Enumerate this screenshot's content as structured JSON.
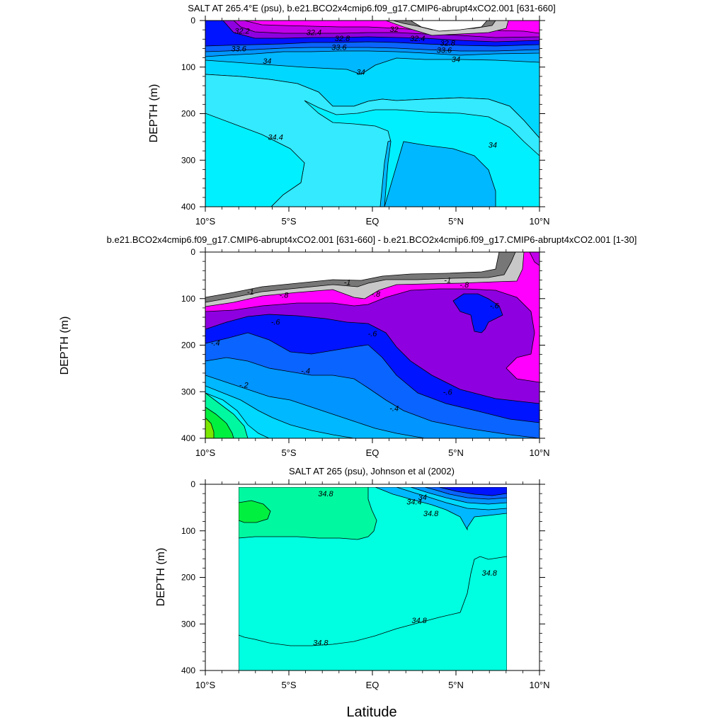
{
  "figure": {
    "xlabel": "Latitude",
    "colors": {
      "frame": "#000000",
      "contour_line": "#000000",
      "c_gray_dark": "#777777",
      "c_gray_light": "#c8c8c8",
      "c_magenta": "#ff00ff",
      "c_violet": "#c000e8",
      "c_purple": "#8e00e0",
      "c_blue": "#0014ff",
      "c_blue_mid": "#0a64ff",
      "c_azure": "#0095ff",
      "c_sky": "#00b8ff",
      "c_cyan_mid": "#00d8ff",
      "c_cyan_light": "#33eaff",
      "c_cyan": "#00f0ff",
      "c_aqua": "#00ffe0",
      "c_sea": "#00f8a0",
      "c_green": "#00f040",
      "c_lime": "#7ce800"
    }
  },
  "chart_data": [
    {
      "type": "contour",
      "title": "SALT AT 265.4°E (psu), b.e21.BCO2x4cmip6.f09_g17.CMIP6-abrupt4xCO2.001 [631-660]",
      "xlabel": "",
      "ylabel": "DEPTH (m)",
      "x_tick_labels": [
        "10°S",
        "5°S",
        "EQ",
        "5°N",
        "10°N"
      ],
      "x_ticks": [
        -10,
        -5,
        0,
        5,
        10
      ],
      "xlim": [
        -10,
        10
      ],
      "y_tick_labels": [
        "0",
        "100",
        "200",
        "300",
        "400"
      ],
      "y_ticks": [
        0,
        100,
        200,
        300,
        400
      ],
      "ylim": [
        400,
        0
      ],
      "y_inverted": true,
      "contour_labels": [
        {
          "text": "32.2",
          "lat": -7.8,
          "depth": 22
        },
        {
          "text": "32.4",
          "lat": -3.5,
          "depth": 25
        },
        {
          "text": "32",
          "lat": 1.3,
          "depth": 18
        },
        {
          "text": "32.4",
          "lat": 2.7,
          "depth": 38
        },
        {
          "text": "32.8",
          "lat": -1.8,
          "depth": 38
        },
        {
          "text": "32.8",
          "lat": 4.5,
          "depth": 48
        },
        {
          "text": "33.6",
          "lat": -2.0,
          "depth": 57
        },
        {
          "text": "33.6",
          "lat": 4.3,
          "depth": 63
        },
        {
          "text": "33.6",
          "lat": -8.0,
          "depth": 60
        },
        {
          "text": "34",
          "lat": -6.3,
          "depth": 87
        },
        {
          "text": "34",
          "lat": -0.7,
          "depth": 110
        },
        {
          "text": "34",
          "lat": 5.0,
          "depth": 83
        },
        {
          "text": "34.4",
          "lat": -5.8,
          "depth": 250
        },
        {
          "text": "34",
          "lat": 7.2,
          "depth": 267
        }
      ]
    },
    {
      "type": "contour",
      "title": "b.e21.BCO2x4cmip6.f09_g17.CMIP6-abrupt4xCO2.001 [631-660] - b.e21.BCO2x4cmip6.f09_g17.CMIP6-abrupt4xCO2.001 [1-30]",
      "xlabel": "",
      "ylabel": "DEPTH (m)",
      "x_tick_labels": [
        "10°S",
        "5°S",
        "EQ",
        "5°N",
        "10°N"
      ],
      "x_ticks": [
        -10,
        -5,
        0,
        5,
        10
      ],
      "xlim": [
        -10,
        10
      ],
      "y_tick_labels": [
        "0",
        "100",
        "200",
        "300",
        "400"
      ],
      "y_ticks": [
        0,
        100,
        200,
        300,
        400
      ],
      "ylim": [
        400,
        0
      ],
      "y_inverted": true,
      "contour_labels": [
        {
          "text": "-1",
          "lat": -7.3,
          "depth": 85
        },
        {
          "text": "-1",
          "lat": -1.5,
          "depth": 65
        },
        {
          "text": "-1",
          "lat": 4.5,
          "depth": 60
        },
        {
          "text": "-.8",
          "lat": -5.3,
          "depth": 92
        },
        {
          "text": "-.8",
          "lat": 0.2,
          "depth": 90
        },
        {
          "text": "-.8",
          "lat": 5.5,
          "depth": 70
        },
        {
          "text": "-.6",
          "lat": -5.8,
          "depth": 150
        },
        {
          "text": "-.6",
          "lat": 0,
          "depth": 175
        },
        {
          "text": "-.6",
          "lat": 7.3,
          "depth": 115
        },
        {
          "text": "-.6",
          "lat": 4.5,
          "depth": 300
        },
        {
          "text": "-.4",
          "lat": -9.4,
          "depth": 195
        },
        {
          "text": "-.4",
          "lat": -4.0,
          "depth": 255
        },
        {
          "text": "-.4",
          "lat": 1.3,
          "depth": 335
        },
        {
          "text": "-.2",
          "lat": -7.7,
          "depth": 285
        }
      ]
    },
    {
      "type": "contour",
      "title": "SALT AT 265 (psu), Johnson et al (2002)",
      "xlabel": "Latitude",
      "ylabel": "DEPTH (m)",
      "x_tick_labels": [
        "10°S",
        "5°S",
        "EQ",
        "5°N",
        "10°N"
      ],
      "x_ticks": [
        -10,
        -5,
        0,
        5,
        10
      ],
      "xlim": [
        -10,
        10
      ],
      "y_tick_labels": [
        "0",
        "100",
        "200",
        "300",
        "400"
      ],
      "y_ticks": [
        0,
        100,
        200,
        300,
        400
      ],
      "ylim": [
        400,
        0
      ],
      "y_inverted": true,
      "data_extent_lat": [
        -8,
        8
      ],
      "contour_labels": [
        {
          "text": "34.8",
          "lat": -2.8,
          "depth": 20
        },
        {
          "text": "34",
          "lat": 3.0,
          "depth": 27
        },
        {
          "text": "34.4",
          "lat": 2.5,
          "depth": 37
        },
        {
          "text": "34.8",
          "lat": 3.5,
          "depth": 62
        },
        {
          "text": "34.8",
          "lat": 7.0,
          "depth": 190
        },
        {
          "text": "34.8",
          "lat": 2.8,
          "depth": 292
        },
        {
          "text": "34.8",
          "lat": -3.1,
          "depth": 340
        }
      ]
    }
  ]
}
